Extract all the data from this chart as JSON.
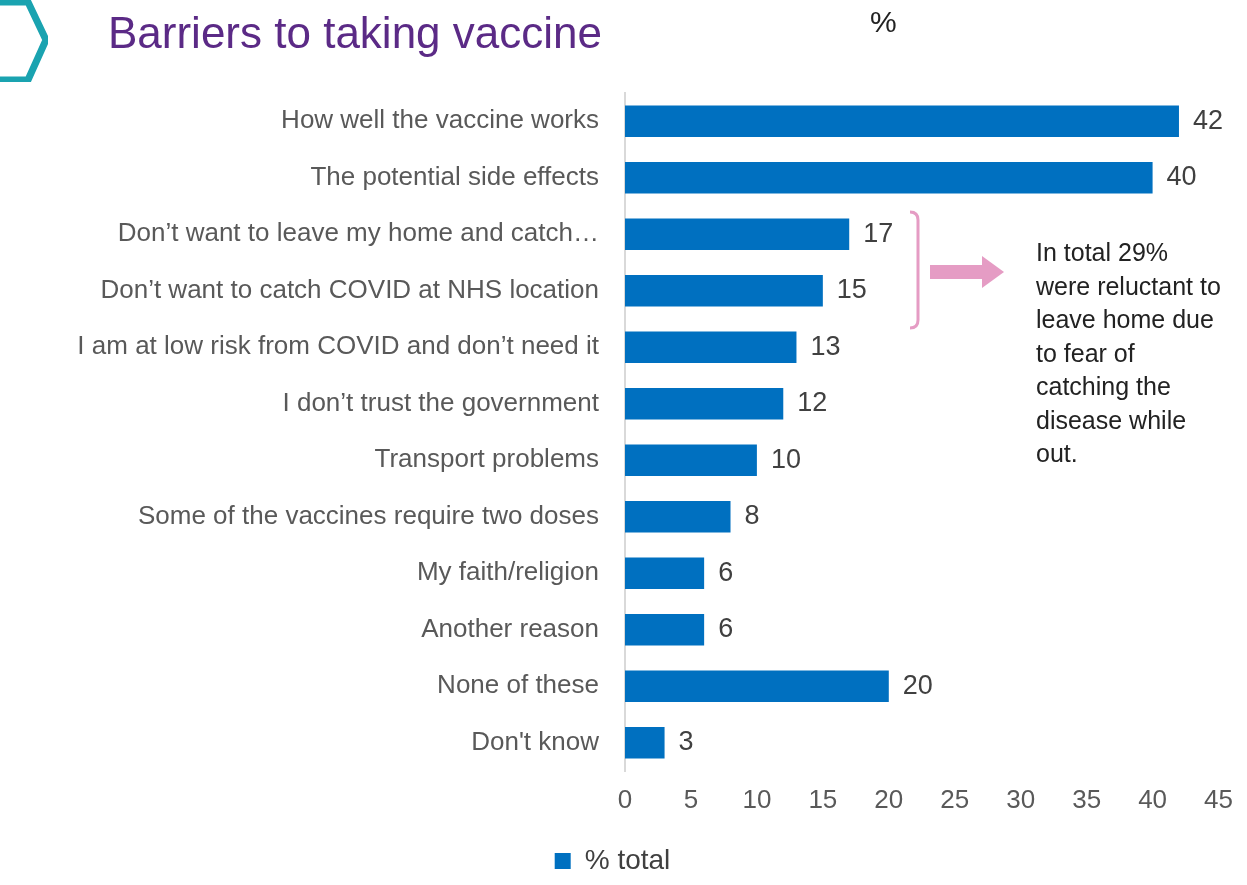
{
  "chart_data": {
    "type": "bar",
    "orientation": "horizontal",
    "title": "Barriers to taking vaccine",
    "subtitle": "%",
    "categories": [
      "How well the vaccine works",
      "The potential side effects",
      "Don’t want to leave my home and catch…",
      "Don’t want to catch COVID at NHS location",
      "I am at low risk from COVID and don’t need it",
      "I don’t trust the government",
      "Transport problems",
      "Some of the vaccines require two doses",
      "My faith/religion",
      "Another reason",
      "None of these",
      "Don't know"
    ],
    "series": [
      {
        "name": "% total",
        "color": "#0070c0",
        "values": [
          42,
          40,
          17,
          15,
          13,
          12,
          10,
          8,
          6,
          6,
          20,
          3
        ]
      }
    ],
    "xlim": [
      0,
      45
    ],
    "xticks": [
      0,
      5,
      10,
      15,
      20,
      25,
      30,
      35,
      40,
      45
    ],
    "grid": false,
    "legend": "bottom",
    "data_labels": true,
    "annotations": [
      "In total 29% were reluctant to leave home due to fear of catching the disease while out."
    ]
  }
}
